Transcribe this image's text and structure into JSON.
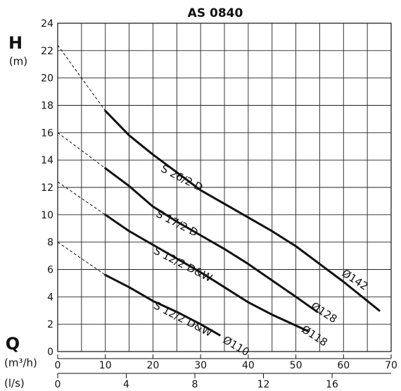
{
  "chart_data": {
    "type": "line",
    "title": "AS 0840",
    "ylabel": "H",
    "ylabel_unit": "(m)",
    "xlabel": "Q",
    "xlabel_unit": "(m³/h)",
    "x2label_unit": "(l/s)",
    "xlim": [
      0,
      70
    ],
    "ylim": [
      0,
      24
    ],
    "grid": true,
    "x_ticks": [
      "0",
      "10",
      "20",
      "30",
      "40",
      "50",
      "60",
      "70"
    ],
    "x2_ticks": [
      "0",
      "4",
      "8",
      "12",
      "16"
    ],
    "y_ticks": [
      "0",
      "2",
      "4",
      "6",
      "8",
      "10",
      "12",
      "14",
      "16",
      "18",
      "20",
      "22",
      "24"
    ],
    "series": [
      {
        "name": "S 26/2 D",
        "diameter": "Ø142",
        "points": [
          [
            10,
            17.6
          ],
          [
            15,
            15.8
          ],
          [
            20,
            14.4
          ],
          [
            25,
            13.1
          ],
          [
            30,
            11.8
          ],
          [
            35,
            10.8
          ],
          [
            40,
            9.8
          ],
          [
            45,
            8.8
          ],
          [
            50,
            7.7
          ],
          [
            55,
            6.4
          ],
          [
            60,
            5.1
          ],
          [
            67.5,
            3.0
          ]
        ],
        "extrapolation": [
          [
            0,
            22.4
          ],
          [
            10,
            17.6
          ]
        ]
      },
      {
        "name": "S 17/2 D",
        "diameter": "Ø128",
        "points": [
          [
            10,
            13.4
          ],
          [
            15,
            12.1
          ],
          [
            20,
            10.6
          ],
          [
            25,
            9.5
          ],
          [
            30,
            8.5
          ],
          [
            35,
            7.5
          ],
          [
            40,
            6.4
          ],
          [
            45,
            5.2
          ],
          [
            50,
            4.0
          ],
          [
            54.5,
            2.9
          ]
        ],
        "extrapolation": [
          [
            0,
            16.0
          ],
          [
            10,
            13.4
          ]
        ]
      },
      {
        "name": "S 12/2 D&W",
        "diameter": "Ø118",
        "points": [
          [
            10,
            10.0
          ],
          [
            15,
            8.8
          ],
          [
            20,
            7.8
          ],
          [
            25,
            6.8
          ],
          [
            30,
            5.8
          ],
          [
            35,
            4.7
          ],
          [
            40,
            3.6
          ],
          [
            45,
            2.7
          ],
          [
            52.5,
            1.5
          ]
        ],
        "extrapolation": [
          [
            0,
            12.4
          ],
          [
            10,
            10.0
          ]
        ]
      },
      {
        "name": "S 12/2 D&W",
        "diameter": "Ø110",
        "points": [
          [
            10,
            5.6
          ],
          [
            15,
            4.7
          ],
          [
            20,
            3.7
          ],
          [
            25,
            2.9
          ],
          [
            30,
            2.0
          ],
          [
            34,
            1.2
          ]
        ],
        "extrapolation": [
          [
            0,
            8.0
          ],
          [
            10,
            5.6
          ]
        ]
      }
    ]
  }
}
